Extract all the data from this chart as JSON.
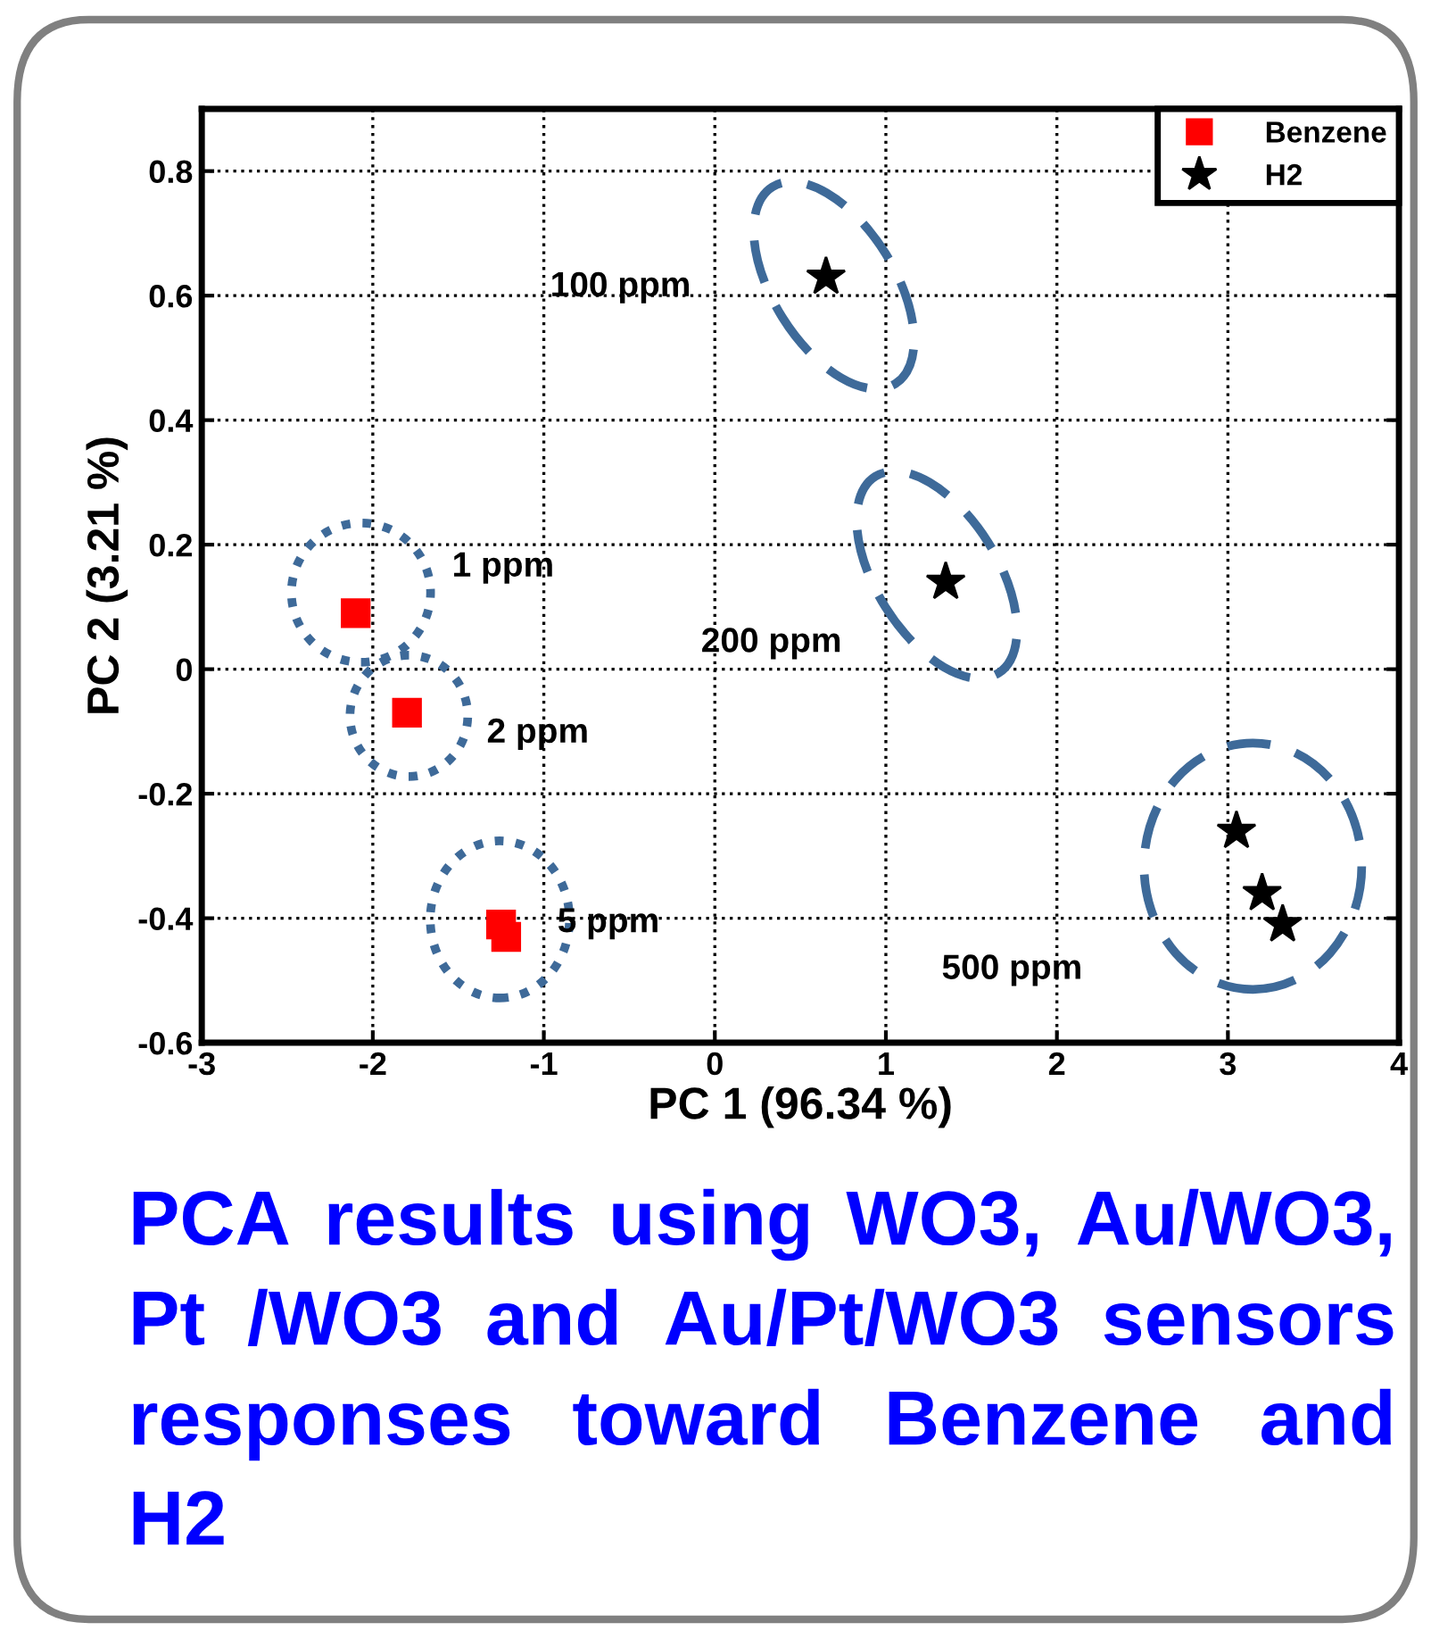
{
  "chart_data": {
    "type": "scatter",
    "xlabel": "PC 1 (96.34 %)",
    "ylabel": "PC 2 (3.21 %)",
    "xlim": [
      -3,
      4
    ],
    "ylim": [
      -0.6,
      0.9
    ],
    "xticks": [
      -3,
      -2,
      -1,
      0,
      1,
      2,
      3,
      4
    ],
    "yticks": [
      {
        "value": -0.6,
        "label": "-0.6"
      },
      {
        "value": -0.4,
        "label": "-0.4"
      },
      {
        "value": -0.2,
        "label": "-0.2"
      },
      0,
      0.2,
      0.4,
      0.6,
      0.8
    ],
    "grid": true,
    "legend": "top right",
    "series": [
      {
        "name": "Benzene",
        "color": "#ff0000",
        "marker": "square",
        "x": [
          -2.1,
          -1.8,
          -1.25,
          -1.22
        ],
        "values": [
          0.09,
          -0.07,
          -0.41,
          -0.43
        ]
      },
      {
        "name": "H2",
        "color": "#000000",
        "marker": "star",
        "x": [
          0.65,
          1.35,
          3.05,
          3.2,
          3.32
        ],
        "values": [
          0.63,
          0.14,
          -0.26,
          -0.36,
          -0.41
        ]
      }
    ],
    "annotations": [
      "1 ppm",
      "2 ppm",
      "5 ppm",
      "100 ppm",
      "200 ppm",
      "500 ppm",
      "PCA results using WO3, Au/WO3, Pt /WO3 and Au/Pt/WO3 sensors responses toward Benzene and H2"
    ]
  }
}
